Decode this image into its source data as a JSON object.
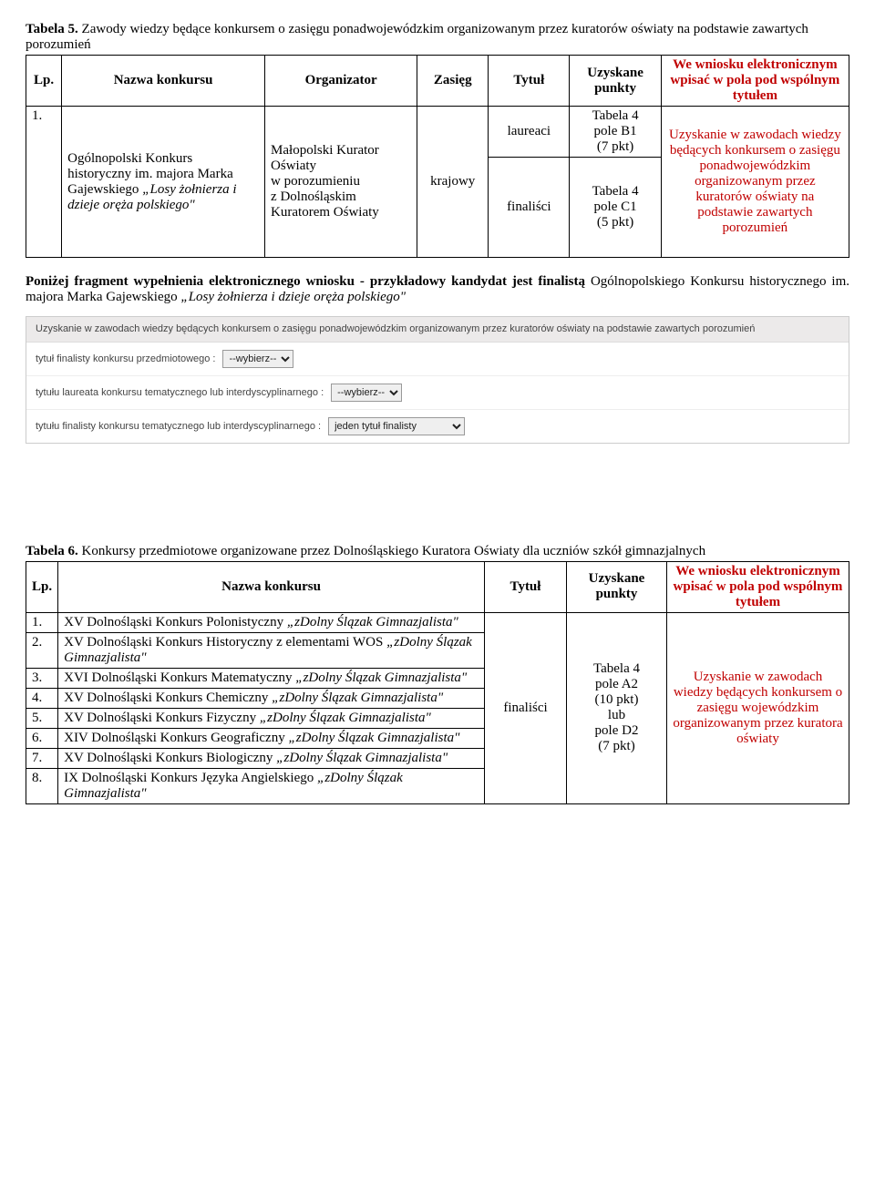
{
  "t5": {
    "caption_bold": "Tabela 5.",
    "caption_rest": " Zawody wiedzy będące konkursem o zasięgu ponadwojewódzkim organizowanym przez kuratorów oświaty na podstawie zawartych porozumień",
    "headers": [
      "Lp.",
      "Nazwa konkursu",
      "Organizator",
      "Zasięg",
      "Tytuł",
      "Uzyskane punkty"
    ],
    "header_red": "We wniosku elektronicznym wpisać w pola pod wspólnym tytułem",
    "row": {
      "lp": "1.",
      "nazwa_plain1": "Ogólnopolski Konkurs historyczny im. majora Marka Gajewskiego ",
      "nazwa_italic": "„Losy żołnierza i dzieje oręża polskiego\"",
      "organizator": "Małopolski Kurator Oświaty\nw porozumieniu\nz Dolnośląskim Kuratorem Oświaty",
      "zasieg": "krajowy",
      "tytul1": "laureaci",
      "tytul2": "finaliści",
      "punkty1": "Tabela 4\npole B1\n(7 pkt)",
      "punkty2": "Tabela 4\npole C1\n(5 pkt)",
      "red": "Uzyskanie w zawodach wiedzy będących konkursem o zasięgu ponadwojewódzkim organizowanym przez kuratorów oświaty na podstawie zawartych porozumień"
    }
  },
  "para": {
    "bold": "Poniżej fragment wypełnienia elektronicznego wniosku - przykładowy kandydat jest finalistą ",
    "plain": "Ogólnopolskiego Konkursu historycznego im. majora Marka Gajewskiego ",
    "italic": "„Losy żołnierza i dzieje oręża polskiego\""
  },
  "form": {
    "header": "Uzyskanie w zawodach wiedzy będących konkursem o zasięgu ponadwojewódzkim organizowanym przez kuratorów oświaty na podstawie zawartych porozumień",
    "r1_label": "tytuł finalisty konkursu przedmiotowego :",
    "r1_value": "--wybierz--",
    "r2_label": "tytułu laureata konkursu tematycznego lub interdyscyplinarnego :",
    "r2_value": "--wybierz--",
    "r3_label": "tytułu finalisty konkursu tematycznego lub interdyscyplinarnego :",
    "r3_value": "jeden tytuł finalisty"
  },
  "t6": {
    "caption_bold": "Tabela 6.",
    "caption_rest": " Konkursy przedmiotowe organizowane przez Dolnośląskiego Kuratora Oświaty dla uczniów szkół gimnazjalnych",
    "headers": [
      "Lp.",
      "Nazwa konkursu",
      "Tytuł",
      "Uzyskane punkty"
    ],
    "header_red": "We wniosku elektronicznym wpisać w pola pod wspólnym tytułem",
    "tytul": "finaliści",
    "punkty": "Tabela 4\npole A2\n(10 pkt)\nlub\npole D2\n(7 pkt)",
    "red": "Uzyskanie w zawodach wiedzy będących konkursem o zasięgu wojewódzkim organizowanym przez kuratora oświaty",
    "rows": [
      {
        "lp": "1.",
        "plain": "XV Dolnośląski Konkurs Polonistyczny ",
        "italic": "„zDolny Ślązak Gimnazjalista\""
      },
      {
        "lp": "2.",
        "plain": "XV Dolnośląski Konkurs Historyczny z elementami WOS ",
        "italic": "„zDolny Ślązak Gimnazjalista\""
      },
      {
        "lp": "3.",
        "plain": "XVI Dolnośląski Konkurs Matematyczny ",
        "italic": "„zDolny Ślązak Gimnazjalista\""
      },
      {
        "lp": "4.",
        "plain": "XV Dolnośląski Konkurs Chemiczny ",
        "italic": "„zDolny Ślązak Gimnazjalista\""
      },
      {
        "lp": "5.",
        "plain": "XV Dolnośląski Konkurs Fizyczny ",
        "italic": "„zDolny Ślązak Gimnazjalista\""
      },
      {
        "lp": "6.",
        "plain": "XIV Dolnośląski Konkurs Geograficzny ",
        "italic": "„zDolny Ślązak Gimnazjalista\""
      },
      {
        "lp": "7.",
        "plain": "XV Dolnośląski Konkurs Biologiczny ",
        "italic": "„zDolny Ślązak Gimnazjalista\""
      },
      {
        "lp": "8.",
        "plain": "IX Dolnośląski Konkurs Języka Angielskiego ",
        "italic": "„zDolny Ślązak Gimnazjalista\""
      }
    ]
  }
}
